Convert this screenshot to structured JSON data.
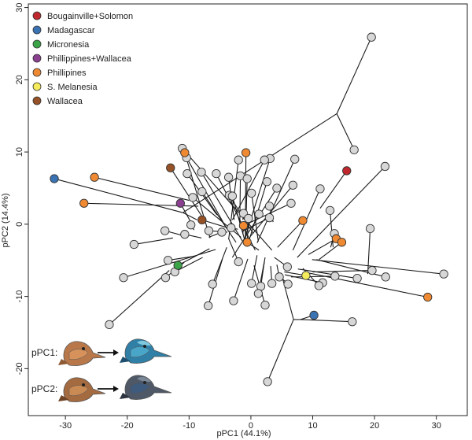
{
  "chart_data": {
    "type": "scatter",
    "title": "",
    "xlabel": "pPC1 (44.1%)",
    "ylabel": "pPC2 (14.4%)",
    "xlim": [
      -36,
      35
    ],
    "ylim": [
      -26.5,
      30.5
    ],
    "x_ticks": [
      -30,
      -20,
      -10,
      0,
      10,
      20,
      30
    ],
    "y_ticks": [
      -20,
      -10,
      0,
      10,
      20,
      30
    ],
    "grid": false,
    "legend_position": "top-left",
    "legend": [
      {
        "name": "Bougainville+Solomon",
        "color": "#c0282d"
      },
      {
        "name": "Madagascar",
        "color": "#3a73b3"
      },
      {
        "name": "Micronesia",
        "color": "#3aa447"
      },
      {
        "name": "Phillippines+Wallacea",
        "color": "#8a3f8f"
      },
      {
        "name": "Phillipines",
        "color": "#ef8a33"
      },
      {
        "name": "S. Melanesia",
        "color": "#f4ec5c"
      },
      {
        "name": "Wallacea",
        "color": "#965226"
      }
    ],
    "series": [
      {
        "name": "Bougainville+Solomon",
        "color": "#c0282d",
        "points": [
          [
            15.5,
            7.4
          ]
        ]
      },
      {
        "name": "Madagascar",
        "color": "#3a73b3",
        "points": [
          [
            -31.8,
            6.3
          ],
          [
            10.2,
            -12.6
          ]
        ]
      },
      {
        "name": "Micronesia",
        "color": "#3aa447",
        "points": [
          [
            -11.8,
            -5.7
          ]
        ]
      },
      {
        "name": "Phillippines+Wallacea",
        "color": "#8a3f8f",
        "points": [
          [
            -11.4,
            2.9
          ]
        ]
      },
      {
        "name": "Phillipines",
        "color": "#ef8a33",
        "points": [
          [
            -25.3,
            6.5
          ],
          [
            -27.0,
            2.9
          ],
          [
            -10.7,
            9.9
          ],
          [
            -0.8,
            9.9
          ],
          [
            8.4,
            0.5
          ],
          [
            13.8,
            -2.0
          ],
          [
            14.7,
            -2.5
          ],
          [
            28.6,
            -10.1
          ],
          [
            -1.2,
            -0.2
          ],
          [
            -0.6,
            -2.5
          ]
        ]
      },
      {
        "name": "S. Melanesia",
        "color": "#f4ec5c",
        "points": [
          [
            8.9,
            -7.1
          ]
        ]
      },
      {
        "name": "Wallacea",
        "color": "#965226",
        "points": [
          [
            -13.0,
            7.8
          ],
          [
            -7.9,
            0.6
          ]
        ]
      },
      {
        "name": "Other",
        "color": "#d7d7d7",
        "points": [
          [
            19.5,
            25.9
          ],
          [
            16.7,
            10.3
          ],
          [
            21.7,
            8.0
          ],
          [
            11.2,
            4.9
          ],
          [
            12.8,
            1.9
          ],
          [
            13.5,
            -1.3
          ],
          [
            19.3,
            -0.6
          ],
          [
            21.8,
            -7.3
          ],
          [
            19.6,
            -6.4
          ],
          [
            17.2,
            -7.5
          ],
          [
            13.6,
            -7.2
          ],
          [
            11.6,
            -8.1
          ],
          [
            31.2,
            -6.9
          ],
          [
            7.1,
            9.0
          ],
          [
            3.1,
            9.1
          ],
          [
            2.2,
            8.9
          ],
          [
            -2.0,
            8.9
          ],
          [
            -1.7,
            6.7
          ],
          [
            -0.6,
            6.3
          ],
          [
            -3.6,
            6.5
          ],
          [
            -5.6,
            7.0
          ],
          [
            -8.0,
            7.2
          ],
          [
            -10.3,
            7.0
          ],
          [
            -10.4,
            9.2
          ],
          [
            -11.1,
            10.5
          ],
          [
            -9.4,
            3.7
          ],
          [
            -7.9,
            4.5
          ],
          [
            -3.5,
            4.0
          ],
          [
            -3.0,
            3.9
          ],
          [
            0.1,
            4.3
          ],
          [
            2.6,
            5.9
          ],
          [
            4.2,
            5.0
          ],
          [
            6.8,
            5.4
          ],
          [
            3.0,
            2.5
          ],
          [
            3.0,
            0.9
          ],
          [
            6.5,
            2.9
          ],
          [
            -1.2,
            1.5
          ],
          [
            1.3,
            1.4
          ],
          [
            -0.4,
            0.8
          ],
          [
            -3.2,
            -0.5
          ],
          [
            -4.7,
            -1.1
          ],
          [
            -6.8,
            -0.9
          ],
          [
            -9.7,
            -0.1
          ],
          [
            -10.7,
            -1.4
          ],
          [
            -13.9,
            -0.9
          ],
          [
            -18.9,
            -2.8
          ],
          [
            -13.4,
            -5.0
          ],
          [
            -12.3,
            -6.6
          ],
          [
            -13.8,
            -7.4
          ],
          [
            -20.6,
            -7.4
          ],
          [
            -6.2,
            -8.3
          ],
          [
            -6.9,
            -11.3
          ],
          [
            -2.0,
            -5.2
          ],
          [
            -2.8,
            -10.6
          ],
          [
            0.1,
            -8.2
          ],
          [
            1.6,
            -8.6
          ],
          [
            1.2,
            -9.6
          ],
          [
            2.3,
            -11.2
          ],
          [
            3.4,
            -8.2
          ],
          [
            4.6,
            -7.3
          ],
          [
            5.9,
            -5.9
          ],
          [
            6.0,
            -8.3
          ],
          [
            11.0,
            -8.5
          ],
          [
            16.4,
            -13.5
          ],
          [
            2.7,
            -21.8
          ],
          [
            -22.9,
            -13.9
          ]
        ]
      }
    ],
    "edges_note": "points connected by unlabeled phylogeny branches"
  },
  "inset": {
    "row1_label": "pPC1:",
    "row2_label": "pPC2:"
  }
}
